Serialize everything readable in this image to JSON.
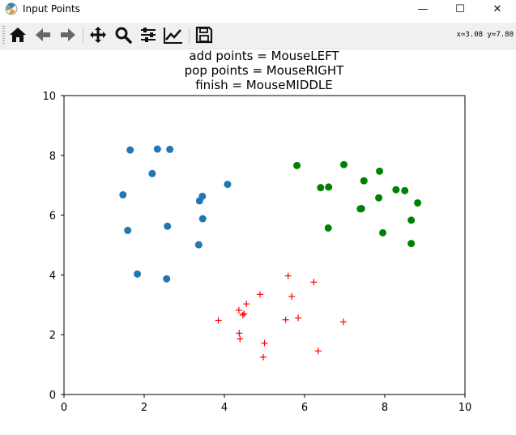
{
  "window": {
    "title": "Input Points",
    "minimize_label": "—",
    "maximize_label": "☐",
    "close_label": "✕"
  },
  "toolbar": {
    "tools": [
      {
        "name": "home-icon"
      },
      {
        "name": "back-arrow-icon"
      },
      {
        "name": "forward-arrow-icon"
      },
      {
        "name": "pan-icon"
      },
      {
        "name": "zoom-icon"
      },
      {
        "name": "subplots-config-icon"
      },
      {
        "name": "edit-axes-icon"
      },
      {
        "name": "save-icon"
      }
    ],
    "coords": "x=3.08 y=7.80"
  },
  "chart_data": {
    "type": "scatter",
    "title": [
      "add points = MouseLEFT",
      "pop points = MouseRIGHT",
      "finish = MouseMIDDLE"
    ],
    "xlim": [
      0,
      10
    ],
    "ylim": [
      0,
      10
    ],
    "xticks": [
      0,
      2,
      4,
      6,
      8,
      10
    ],
    "yticks": [
      0,
      2,
      4,
      6,
      8,
      10
    ],
    "grid": false,
    "series": [
      {
        "marker": "circle",
        "color": "#1f77b4",
        "points": [
          [
            1.65,
            8.18
          ],
          [
            2.33,
            8.21
          ],
          [
            2.64,
            8.2
          ],
          [
            2.2,
            7.39
          ],
          [
            1.47,
            6.68
          ],
          [
            3.38,
            6.48
          ],
          [
            3.45,
            6.63
          ],
          [
            4.08,
            7.03
          ],
          [
            2.58,
            5.63
          ],
          [
            3.46,
            5.88
          ],
          [
            1.59,
            5.49
          ],
          [
            3.36,
            5.01
          ],
          [
            1.83,
            4.03
          ],
          [
            2.56,
            3.87
          ]
        ]
      },
      {
        "marker": "circle",
        "color": "#008000",
        "points": [
          [
            5.81,
            7.66
          ],
          [
            6.98,
            7.69
          ],
          [
            7.87,
            7.47
          ],
          [
            7.48,
            7.15
          ],
          [
            6.4,
            6.92
          ],
          [
            6.6,
            6.94
          ],
          [
            8.28,
            6.85
          ],
          [
            8.5,
            6.82
          ],
          [
            7.85,
            6.58
          ],
          [
            8.82,
            6.41
          ],
          [
            7.39,
            6.21
          ],
          [
            7.42,
            6.22
          ],
          [
            8.66,
            5.83
          ],
          [
            6.59,
            5.57
          ],
          [
            7.95,
            5.41
          ],
          [
            8.66,
            5.05
          ]
        ]
      },
      {
        "marker": "plus",
        "color": "#ff0000",
        "points": [
          [
            5.59,
            3.97
          ],
          [
            6.23,
            3.76
          ],
          [
            4.89,
            3.35
          ],
          [
            5.68,
            3.28
          ],
          [
            4.55,
            3.03
          ],
          [
            4.36,
            2.82
          ],
          [
            4.49,
            2.7
          ],
          [
            4.46,
            2.66
          ],
          [
            3.85,
            2.48
          ],
          [
            5.53,
            2.5
          ],
          [
            5.84,
            2.56
          ],
          [
            6.97,
            2.43
          ],
          [
            4.37,
            2.05
          ],
          [
            4.39,
            1.86
          ],
          [
            5.0,
            1.72
          ],
          [
            6.34,
            1.46
          ],
          [
            4.97,
            1.25
          ]
        ]
      }
    ]
  }
}
